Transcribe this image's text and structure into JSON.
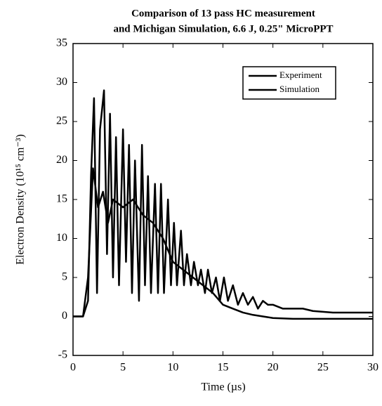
{
  "chart_data": {
    "type": "line",
    "title": [
      "Comparison of 13 pass HC measurement",
      "and Michigan Simulation,  6.6 J, 0.25\" MicroPPT"
    ],
    "x_label": "Time (µs)",
    "y_label": "Electron Density (10¹⁵ cm⁻³)",
    "xlim": [
      0,
      30
    ],
    "xticks": [
      0,
      5,
      10,
      15,
      20,
      25,
      30
    ],
    "ylim": [
      -5,
      35
    ],
    "yticks": [
      -5,
      0,
      5,
      10,
      15,
      20,
      25,
      30,
      35
    ],
    "legend": "upper right",
    "series": [
      {
        "name": "Experiment",
        "color": "#000000",
        "x": [
          0,
          1,
          1.5,
          1.8,
          2.1,
          2.4,
          2.7,
          3.1,
          3.4,
          3.7,
          4.0,
          4.3,
          4.6,
          5.0,
          5.3,
          5.6,
          5.9,
          6.2,
          6.6,
          6.9,
          7.2,
          7.5,
          7.8,
          8.2,
          8.5,
          8.8,
          9.1,
          9.5,
          9.8,
          10.1,
          10.4,
          10.8,
          11.1,
          11.4,
          11.8,
          12.1,
          12.5,
          12.8,
          13.2,
          13.5,
          13.9,
          14.3,
          14.7,
          15.1,
          15.5,
          16,
          16.5,
          17,
          17.5,
          18,
          18.5,
          19,
          19.5,
          20,
          21,
          22,
          23,
          24,
          25,
          26,
          27,
          28,
          29,
          30
        ],
        "values": [
          0,
          0,
          2,
          18,
          28,
          3,
          24,
          29,
          8,
          26,
          5,
          23,
          4,
          24,
          7,
          22,
          3,
          20,
          2,
          22,
          4,
          18,
          3,
          17,
          3,
          17,
          3,
          15,
          4,
          12,
          4,
          11,
          4,
          8,
          4,
          7,
          4,
          6,
          3,
          6,
          3,
          5,
          2,
          5,
          2,
          4,
          1.5,
          3,
          1.5,
          2.5,
          1,
          2,
          1.5,
          1.5,
          1,
          1,
          1,
          0.7,
          0.6,
          0.5,
          0.5,
          0.5,
          0.5,
          0.5
        ]
      },
      {
        "name": "Simulation",
        "color": "#000000",
        "x": [
          0,
          1,
          1.5,
          2,
          2.5,
          3,
          3.5,
          4,
          5,
          6,
          7,
          8,
          9,
          10,
          11,
          12,
          13,
          14,
          15,
          16,
          17,
          18,
          19,
          20,
          22,
          25,
          28,
          30
        ],
        "values": [
          0,
          0,
          5,
          19,
          14,
          16,
          12,
          15,
          14,
          15,
          13,
          12,
          10,
          7,
          6,
          5,
          4,
          3,
          1.5,
          1,
          0.5,
          0.2,
          0,
          -0.2,
          -0.3,
          -0.3,
          -0.3,
          -0.3
        ]
      }
    ]
  }
}
